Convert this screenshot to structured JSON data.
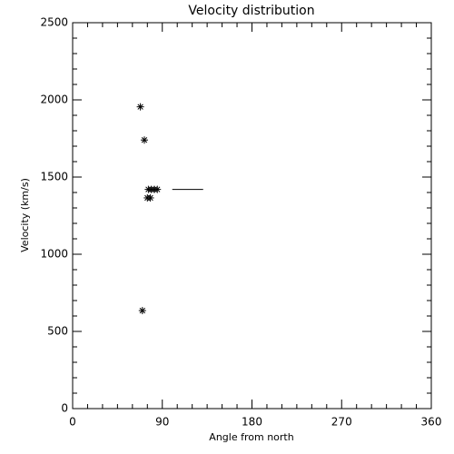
{
  "chart_data": {
    "type": "scatter",
    "title": "Velocity distribution",
    "xlabel": "Angle from north",
    "ylabel": "Velocity (km/s)",
    "xlim": [
      0,
      360
    ],
    "xticks": [
      0,
      90,
      180,
      270,
      360
    ],
    "ylim": [
      0,
      2500
    ],
    "yticks": [
      0,
      500,
      1000,
      1500,
      2000,
      2500
    ],
    "color": "#000000",
    "series": [
      {
        "style": "asterisk",
        "x": [
          68,
          72,
          76,
          79,
          82,
          85,
          75,
          78,
          70
        ],
        "values": [
          1955,
          1740,
          1420,
          1420,
          1420,
          1420,
          1365,
          1365,
          635
        ]
      },
      {
        "style": "line",
        "x": [
          100,
          131
        ],
        "values": [
          1420,
          1420
        ]
      }
    ]
  }
}
